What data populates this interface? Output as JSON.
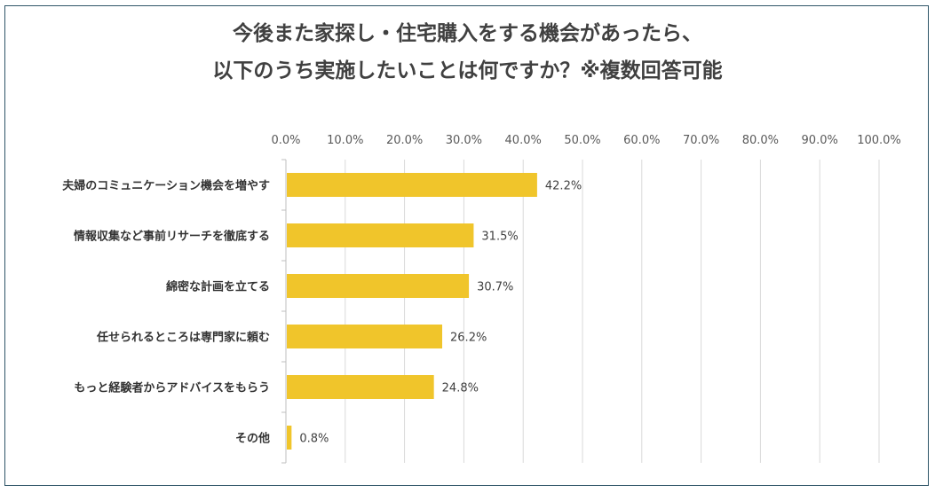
{
  "chart_data": {
    "type": "bar",
    "orientation": "horizontal",
    "title_lines": [
      "今後また家探し・住宅購入をする機会があったら、",
      "以下のうち実施したいことは何ですか？※複数回答可能"
    ],
    "categories": [
      "夫婦のコミュニケーション機会を増やす",
      "情報収集など事前リサーチを徹底する",
      "綿密な計画を立てる",
      "任せられるところは専門家に頼む",
      "もっと経験者からアドバイスをもらう",
      "その他"
    ],
    "values": [
      42.2,
      31.5,
      30.7,
      26.2,
      24.8,
      0.8
    ],
    "value_labels": [
      "42.2%",
      "31.5%",
      "30.7%",
      "26.2%",
      "24.8%",
      "0.8%"
    ],
    "x_ticks": [
      "0.0%",
      "10.0%",
      "20.0%",
      "30.0%",
      "40.0%",
      "50.0%",
      "60.0%",
      "70.0%",
      "80.0%",
      "90.0%",
      "100.0%"
    ],
    "xlim": [
      0,
      100
    ],
    "x_axis_position": "top",
    "grid": true,
    "bar_color": "#f0c52b",
    "grid_color": "#d9d9d9"
  }
}
